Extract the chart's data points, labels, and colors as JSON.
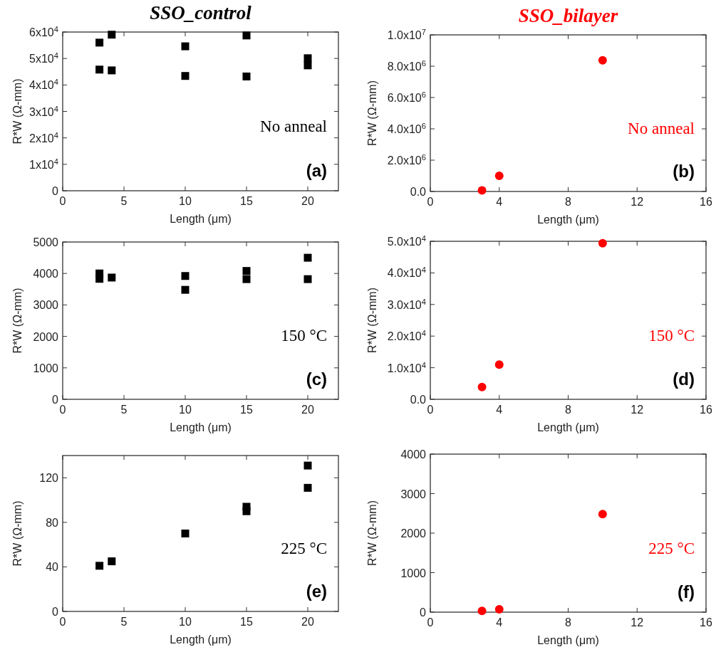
{
  "chart_data": [
    {
      "type": "scatter",
      "title": "SSO_control",
      "xlabel": "Length (μm)",
      "ylabel": "R*W (Ω-mm)",
      "annotations": [
        "No anneal",
        "(a)"
      ],
      "marker": "square",
      "xlim": [
        0,
        22.5
      ],
      "xticks": [
        0,
        5,
        10,
        15,
        20
      ],
      "ylim": [
        0,
        60000
      ],
      "yticks": [
        {
          "value": 0,
          "label": "0"
        },
        {
          "value": 10000,
          "label": "1x10$^{4}$"
        },
        {
          "value": 20000,
          "label": "2x10$^{4}$"
        },
        {
          "value": 30000,
          "label": "3x10$^{4}$"
        },
        {
          "value": 40000,
          "label": "4x10$^{4}$"
        },
        {
          "value": 50000,
          "label": "5x10$^{4}$"
        },
        {
          "value": 60000,
          "label": "6x10$^{4}$"
        }
      ],
      "series": [
        {
          "color": "#000000",
          "x": [
            3,
            3,
            4,
            4,
            10,
            10,
            15,
            15,
            20,
            20
          ],
          "values": [
            56000,
            45800,
            59000,
            45500,
            54600,
            43400,
            58700,
            43200,
            50100,
            47400
          ]
        }
      ]
    },
    {
      "type": "scatter",
      "title": "SSO_bilayer",
      "xlabel": "Length (μm)",
      "ylabel": "R*W (Ω-mm)",
      "annotations": [
        "No anneal",
        "(b)"
      ],
      "marker": "circle",
      "xlim": [
        0,
        16
      ],
      "xticks": [
        0,
        4,
        8,
        12,
        16
      ],
      "ylim": [
        0,
        10000000
      ],
      "yticks": [
        {
          "value": 0,
          "label": "0.0"
        },
        {
          "value": 2000000,
          "label": "2.0x10$^{6}$"
        },
        {
          "value": 4000000,
          "label": "4.0x10$^{6}$"
        },
        {
          "value": 6000000,
          "label": "6.0x10$^{6}$"
        },
        {
          "value": 8000000,
          "label": "8.0x10$^{6}$"
        },
        {
          "value": 10000000,
          "label": "1.0x10$^{7}$"
        }
      ],
      "series": [
        {
          "color": "#ff0000",
          "x": [
            3,
            4,
            10
          ],
          "values": [
            70000,
            1000000,
            8380000
          ]
        }
      ]
    },
    {
      "type": "scatter",
      "xlabel": "Length (μm)",
      "ylabel": "R*W (Ω-mm)",
      "annotations": [
        "150 °C",
        "(c)"
      ],
      "marker": "square",
      "xlim": [
        0,
        22.5
      ],
      "xticks": [
        0,
        5,
        10,
        15,
        20
      ],
      "ylim": [
        0,
        5000
      ],
      "yticks": [
        0,
        1000,
        2000,
        3000,
        4000,
        5000
      ],
      "series": [
        {
          "color": "#000000",
          "x": [
            3,
            3,
            4,
            10,
            10,
            15,
            15,
            20,
            20
          ],
          "values": [
            4000,
            3830,
            3870,
            3920,
            3480,
            4080,
            3820,
            4500,
            3820
          ]
        }
      ]
    },
    {
      "type": "scatter",
      "xlabel": "Length (μm)",
      "ylabel": "R*W (Ω-mm)",
      "annotations": [
        "150 °C",
        "(d)"
      ],
      "marker": "circle",
      "xlim": [
        0,
        16
      ],
      "xticks": [
        0,
        4,
        8,
        12,
        16
      ],
      "ylim": [
        0,
        50000
      ],
      "yticks": [
        {
          "value": 0,
          "label": "0.0"
        },
        {
          "value": 10000,
          "label": "1.0x10$^{4}$"
        },
        {
          "value": 20000,
          "label": "2.0x10$^{4}$"
        },
        {
          "value": 30000,
          "label": "3.0x10$^{4}$"
        },
        {
          "value": 40000,
          "label": "4.0x10$^{4}$"
        },
        {
          "value": 50000,
          "label": "5.0x10$^{4}$"
        }
      ],
      "series": [
        {
          "color": "#ff0000",
          "x": [
            3,
            4,
            10
          ],
          "values": [
            3900,
            11000,
            49400
          ]
        }
      ]
    },
    {
      "type": "scatter",
      "xlabel": "Length (μm)",
      "ylabel": "R*W (Ω-mm)",
      "annotations": [
        "225 °C",
        "(e)"
      ],
      "marker": "square",
      "xlim": [
        0,
        22.5
      ],
      "xticks": [
        0,
        5,
        10,
        15,
        20
      ],
      "ylim": [
        0,
        140
      ],
      "yticks": [
        0,
        40,
        80,
        120
      ],
      "series": [
        {
          "color": "#000000",
          "x": [
            3,
            4,
            10,
            15,
            15,
            20,
            20
          ],
          "values": [
            41,
            45,
            70,
            94,
            90,
            131,
            111
          ]
        }
      ]
    },
    {
      "type": "scatter",
      "xlabel": "Length (μm)",
      "ylabel": "R*W (Ω-mm)",
      "annotations": [
        "225 °C",
        "(f)"
      ],
      "marker": "circle",
      "xlim": [
        0,
        16
      ],
      "xticks": [
        0,
        4,
        8,
        12,
        16
      ],
      "ylim": [
        0,
        4000
      ],
      "yticks": [
        0,
        1000,
        2000,
        3000,
        4000
      ],
      "series": [
        {
          "color": "#ff0000",
          "x": [
            3,
            4,
            10
          ],
          "values": [
            30,
            70,
            2480
          ]
        }
      ]
    }
  ]
}
